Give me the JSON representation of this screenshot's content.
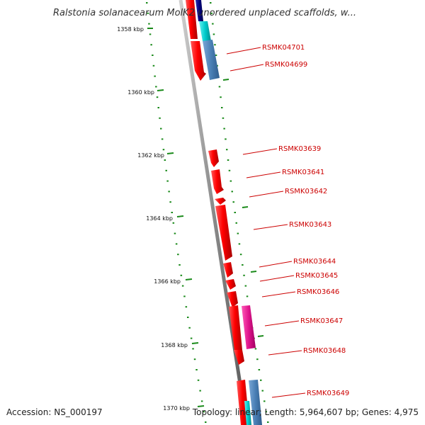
{
  "title": "Ralstonia solanacearum MolK2 unordered unplaced scaffolds, w...",
  "footer": {
    "accession": "Accession: NS_000197",
    "summary": "Topology: linear; Length: 5,964,607 bp; Genes: 4,975"
  },
  "scale_ticks": [
    "1358 kbp",
    "1360 kbp",
    "1362 kbp",
    "1364 kbp",
    "1366 kbp",
    "1368 kbp",
    "1370 kbp"
  ],
  "gene_labels": [
    "RSMK04701",
    "RSMK04699",
    "RSMK03639",
    "RSMK03641",
    "RSMK03642",
    "RSMK03643",
    "RSMK03644",
    "RSMK03645",
    "RSMK03646",
    "RSMK03647",
    "RSMK03648",
    "RSMK03649"
  ],
  "colors": {
    "gene_red": "#ff0000",
    "gene_cyan": "#00cccc",
    "gene_steelblue": "#4a7fb5",
    "gene_navy": "#000080",
    "gene_magenta": "#e0148c",
    "backbone": "#808080",
    "ticks": "#1a8a1a",
    "label": "#cc0000"
  }
}
